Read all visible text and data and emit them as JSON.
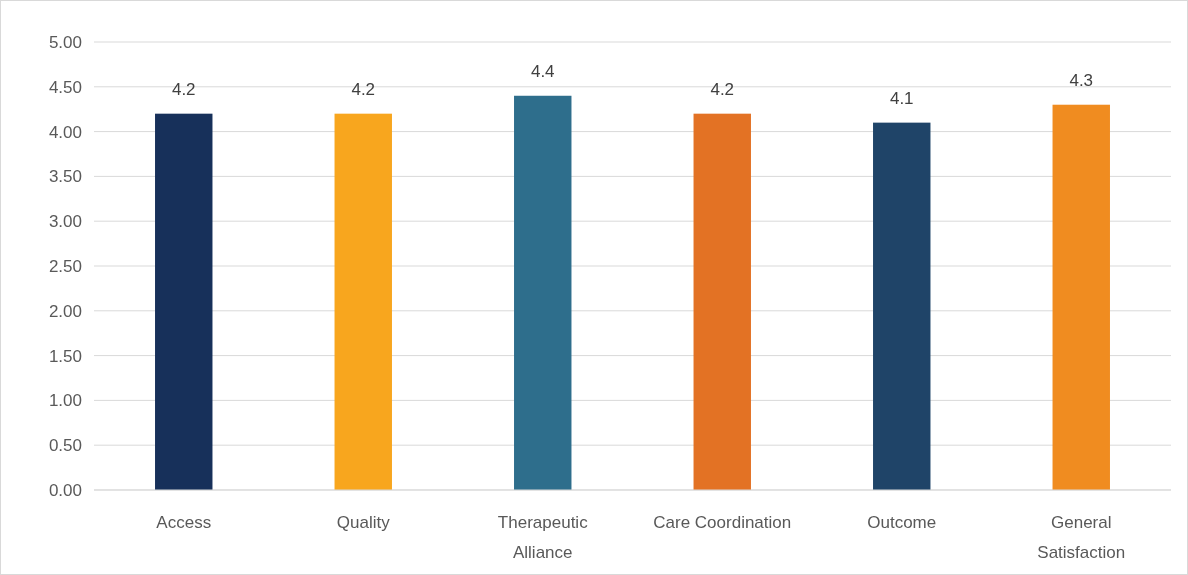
{
  "chart_data": {
    "type": "bar",
    "categories": [
      "Access",
      "Quality",
      "Therapeutic Alliance",
      "Care Coordination",
      "Outcome",
      "General Satisfaction"
    ],
    "values": [
      4.2,
      4.2,
      4.4,
      4.2,
      4.1,
      4.3
    ],
    "colors": [
      "#17305a",
      "#f8a61e",
      "#2e6e8c",
      "#e37224",
      "#1f4468",
      "#f08c20"
    ],
    "ylim": [
      0,
      5
    ],
    "yticks": [
      {
        "value": 0,
        "label": "0.00"
      },
      {
        "value": 0.5,
        "label": "0.50"
      },
      {
        "value": 1,
        "label": "1.00"
      },
      {
        "value": 1.5,
        "label": "1.50"
      },
      {
        "value": 2,
        "label": "2.00"
      },
      {
        "value": 2.5,
        "label": "2.50"
      },
      {
        "value": 3,
        "label": "3.00"
      },
      {
        "value": 3.5,
        "label": "3.50"
      },
      {
        "value": 4,
        "label": "4.00"
      },
      {
        "value": 4.5,
        "label": "4.50"
      },
      {
        "value": 5,
        "label": "5.00"
      }
    ],
    "grid": "y",
    "data_labels": true
  }
}
